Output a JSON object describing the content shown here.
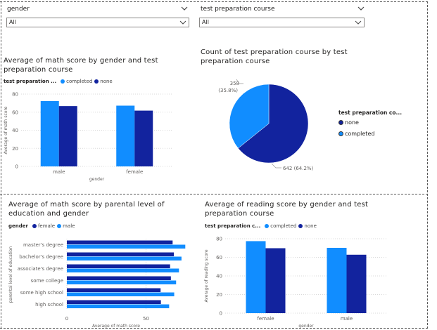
{
  "slicers": [
    {
      "title": "gender",
      "value": "All"
    },
    {
      "title": "test preparation course",
      "value": "All"
    }
  ],
  "colors": {
    "completed": "#118DFF",
    "none": "#12239E",
    "female": "#12239E",
    "male": "#118DFF"
  },
  "chart_data": [
    {
      "type": "bar",
      "title": "Average of math score by gender and test preparation course",
      "legend_title": "test preparation ...",
      "xlabel": "gender",
      "ylabel": "Average of math score",
      "categories": [
        "male",
        "female"
      ],
      "series": [
        {
          "name": "completed",
          "values": [
            72.3,
            67.2
          ]
        },
        {
          "name": "none",
          "values": [
            66.7,
            61.7
          ]
        }
      ],
      "ylim": [
        0,
        80
      ],
      "yticks": [
        "0",
        "20",
        "40",
        "60",
        "80"
      ]
    },
    {
      "type": "pie",
      "title": "Count of test preparation course by test preparation course",
      "legend_title": "test preparation co...",
      "labels": [
        "none",
        "completed"
      ],
      "values": [
        642,
        358
      ],
      "data_labels": [
        "642 (64.2%)",
        "358\n(35.8%)"
      ],
      "legend_position": "right"
    },
    {
      "type": "bar",
      "orientation": "horizontal",
      "title": "Average of math score by parental level of education and gender",
      "legend_title": "gender",
      "xlabel": "Average of math score",
      "ylabel": "parental level of education",
      "categories": [
        "master's degree",
        "bachelor's degree",
        "associate's degree",
        "some college",
        "some high school",
        "high school"
      ],
      "series": [
        {
          "name": "female",
          "values": [
            66.8,
            67.6,
            65.2,
            65.7,
            59.2,
            59.4
          ]
        },
        {
          "name": "male",
          "values": [
            74.8,
            72.4,
            70.8,
            69.0,
            67.8,
            64.6
          ]
        }
      ],
      "xlim": [
        0,
        80
      ],
      "xticks": [
        "0",
        "50"
      ]
    },
    {
      "type": "bar",
      "title": "Average of reading score by gender and test preparation course",
      "legend_title": "test preparation c...",
      "xlabel": "gender",
      "ylabel": "Average of reading score",
      "categories": [
        "female",
        "male"
      ],
      "series": [
        {
          "name": "completed",
          "values": [
            77.4,
            70.2
          ]
        },
        {
          "name": "none",
          "values": [
            69.8,
            62.8
          ]
        }
      ],
      "ylim": [
        0,
        80
      ],
      "yticks": [
        "0",
        "20",
        "40",
        "60",
        "80"
      ]
    }
  ]
}
